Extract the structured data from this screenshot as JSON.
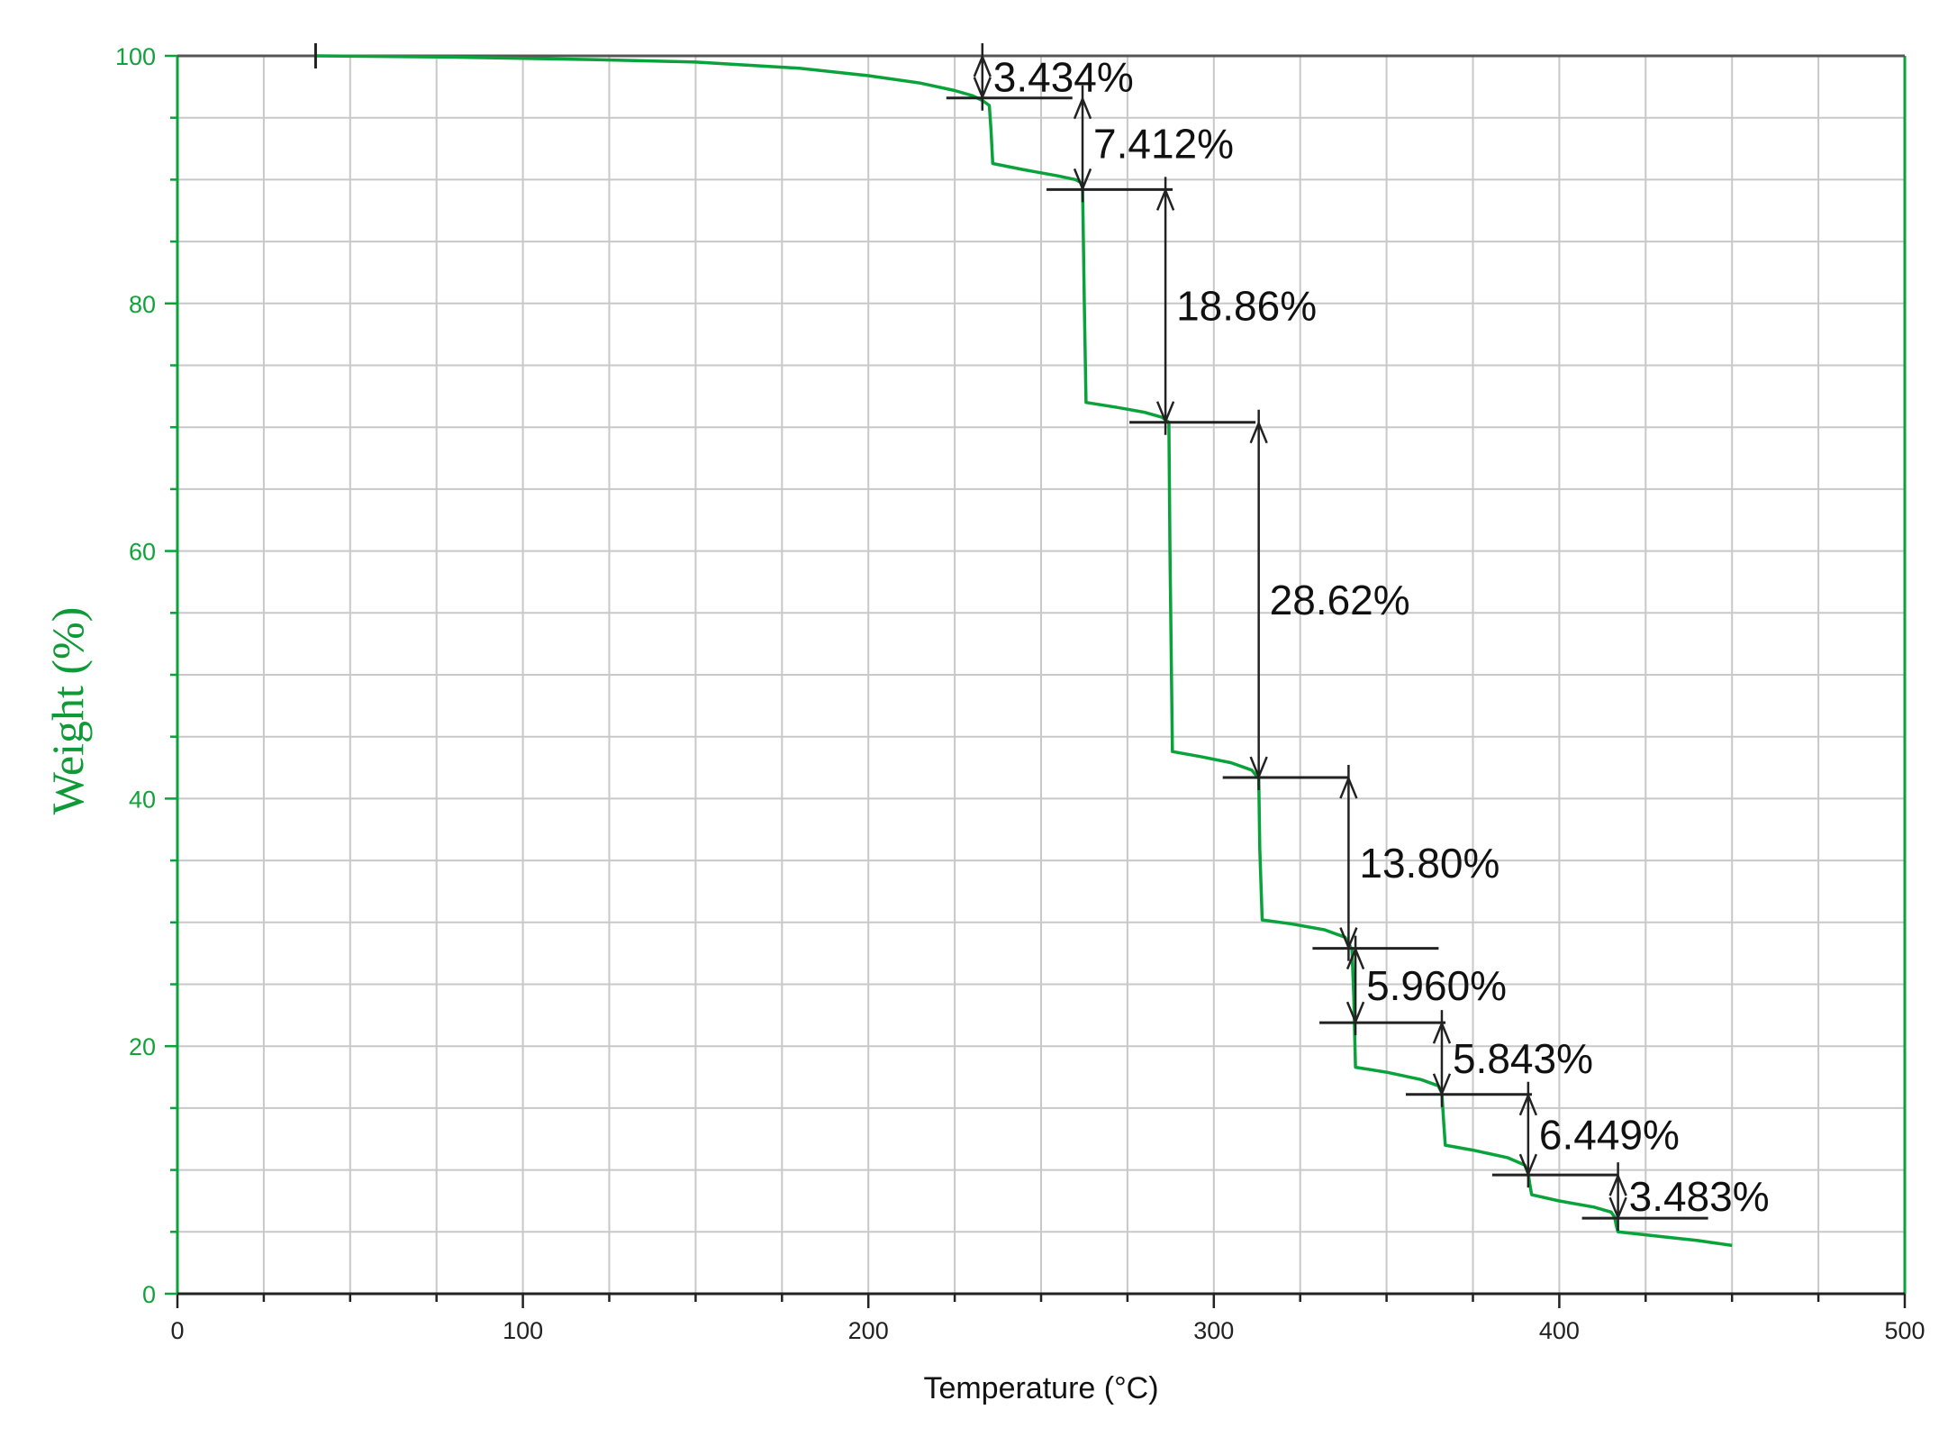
{
  "chart_data": {
    "type": "line",
    "title": "",
    "xlabel": "Temperature (°C)",
    "ylabel": "Weight (%)",
    "xlim": [
      0,
      500
    ],
    "ylim": [
      0,
      100
    ],
    "x_ticks": [
      "0",
      "100",
      "200",
      "300",
      "400",
      "500"
    ],
    "y_ticks": [
      "0",
      "20",
      "40",
      "60",
      "80",
      "100"
    ],
    "grid": true,
    "colors": {
      "curve": "#0aa23a",
      "axis_left": "#0aa23a",
      "annotations": "#222222",
      "grid": "#c8c8c8"
    },
    "series": [
      {
        "x": [
          40,
          80,
          120,
          150,
          180,
          200,
          215,
          225,
          230,
          233,
          235,
          235.5,
          236,
          245,
          255,
          260,
          262,
          262.5,
          263,
          272,
          280,
          285,
          287,
          287.3,
          288,
          296,
          305,
          311,
          313,
          313.3,
          314,
          322,
          332,
          338,
          340,
          340.5,
          341,
          350,
          360,
          365,
          366,
          366.5,
          367,
          375,
          385,
          390,
          391,
          391.5,
          392,
          400,
          410,
          415,
          416,
          416.5,
          417,
          430,
          440,
          450
        ],
        "y": [
          100,
          99.9,
          99.7,
          99.5,
          99.0,
          98.4,
          97.8,
          97.2,
          96.8,
          96.4,
          96.0,
          94.0,
          91.3,
          90.8,
          90.3,
          90.0,
          89.7,
          80.0,
          72.0,
          71.6,
          71.2,
          70.8,
          70.4,
          60.0,
          43.8,
          43.4,
          42.9,
          42.3,
          41.6,
          36.0,
          30.2,
          29.9,
          29.4,
          28.8,
          27.8,
          24.0,
          18.3,
          17.9,
          17.3,
          16.8,
          16.2,
          14.0,
          12.0,
          11.6,
          11.0,
          10.4,
          9.7,
          8.8,
          8.0,
          7.5,
          7.0,
          6.6,
          6.2,
          5.5,
          5.0,
          4.6,
          4.3,
          3.9
        ]
      }
    ],
    "annotations": [
      {
        "label": "3.434%",
        "x": 233,
        "y_top": 100,
        "y_bottom": 96.6
      },
      {
        "label": "7.412%",
        "x": 262,
        "y_top": 96.6,
        "y_bottom": 89.2
      },
      {
        "label": "18.86%",
        "x": 286,
        "y_top": 89.2,
        "y_bottom": 70.4
      },
      {
        "label": "28.62%",
        "x": 313,
        "y_top": 70.4,
        "y_bottom": 41.7
      },
      {
        "label": "13.80%",
        "x": 339,
        "y_top": 41.7,
        "y_bottom": 27.9
      },
      {
        "label": "5.960%",
        "x": 341,
        "y_top": 27.9,
        "y_bottom": 21.9
      },
      {
        "label": "5.843%",
        "x": 366,
        "y_top": 21.9,
        "y_bottom": 16.1
      },
      {
        "label": "6.449%",
        "x": 391,
        "y_top": 16.1,
        "y_bottom": 9.6
      },
      {
        "label": "3.483%",
        "x": 417,
        "y_top": 9.6,
        "y_bottom": 6.1
      }
    ],
    "start_marker": {
      "x": 40,
      "y": 100
    }
  }
}
